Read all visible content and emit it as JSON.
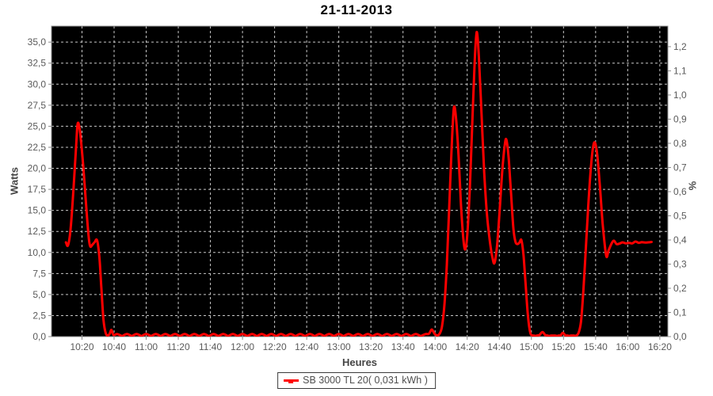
{
  "chart_data": {
    "type": "line",
    "title": "21-11-2013",
    "xlabel": "Heures",
    "ylabel_left": "Watts",
    "ylabel_right": "%",
    "plot_bg": "#000000",
    "grid_color": "#c8c8c8",
    "axis_color": "#8c8c8c",
    "grid_style": "dashed",
    "legend_position": "bottom",
    "x_unit": "minutes after 10:00",
    "xlim": [
      1,
      385
    ],
    "ylim_left": [
      0,
      36.9
    ],
    "ylim_right": [
      0,
      1.285
    ],
    "x_ticks": [
      [
        20,
        "10:20"
      ],
      [
        40,
        "10:40"
      ],
      [
        60,
        "11:00"
      ],
      [
        80,
        "11:20"
      ],
      [
        100,
        "11:40"
      ],
      [
        120,
        "12:00"
      ],
      [
        140,
        "12:20"
      ],
      [
        160,
        "12:40"
      ],
      [
        180,
        "13:00"
      ],
      [
        200,
        "13:20"
      ],
      [
        220,
        "13:40"
      ],
      [
        240,
        "14:00"
      ],
      [
        260,
        "14:20"
      ],
      [
        280,
        "14:40"
      ],
      [
        300,
        "15:00"
      ],
      [
        320,
        "15:20"
      ],
      [
        340,
        "15:40"
      ],
      [
        360,
        "16:00"
      ],
      [
        380,
        "16:20"
      ]
    ],
    "y_ticks_left": [
      [
        0,
        "0,0"
      ],
      [
        2.5,
        "2,5"
      ],
      [
        5,
        "5,0"
      ],
      [
        7.5,
        "7,5"
      ],
      [
        10,
        "10,0"
      ],
      [
        12.5,
        "12,5"
      ],
      [
        15,
        "15,0"
      ],
      [
        17.5,
        "17,5"
      ],
      [
        20,
        "20,0"
      ],
      [
        22.5,
        "22,5"
      ],
      [
        25,
        "25,0"
      ],
      [
        27.5,
        "27,5"
      ],
      [
        30,
        "30,0"
      ],
      [
        32.5,
        "32,5"
      ],
      [
        35,
        "35,0"
      ]
    ],
    "y_ticks_right": [
      [
        0,
        "0,0"
      ],
      [
        0.1,
        "0,1"
      ],
      [
        0.2,
        "0,2"
      ],
      [
        0.3,
        "0,3"
      ],
      [
        0.4,
        "0,4"
      ],
      [
        0.5,
        "0,5"
      ],
      [
        0.6,
        "0,6"
      ],
      [
        0.7,
        "0,7"
      ],
      [
        0.8,
        "0,8"
      ],
      [
        0.9,
        "0,9"
      ],
      [
        1.0,
        "1,0"
      ],
      [
        1.1,
        "1,1"
      ],
      [
        1.2,
        "1,2"
      ]
    ],
    "series": [
      {
        "name": "SB 3000 TL 20( 0,031 kWh )",
        "color": "#ff0000",
        "width": 3,
        "points": [
          [
            10,
            11.2
          ],
          [
            11.3,
            10.85
          ],
          [
            13,
            13
          ],
          [
            15,
            18.5
          ],
          [
            16.3,
            22.5
          ],
          [
            17.3,
            25.3
          ],
          [
            18.6,
            24.6
          ],
          [
            20,
            22
          ],
          [
            21.5,
            18.5
          ],
          [
            23,
            14.5
          ],
          [
            24.3,
            11.6
          ],
          [
            25.2,
            10.7
          ],
          [
            26.4,
            10.9
          ],
          [
            27.8,
            11.2
          ],
          [
            29.4,
            11.45
          ],
          [
            30.8,
            9.5
          ],
          [
            32,
            6
          ],
          [
            33.4,
            2
          ],
          [
            34.7,
            0.45
          ],
          [
            36,
            0.12
          ],
          [
            37.2,
            0.3
          ],
          [
            38.3,
            0.8
          ],
          [
            39.6,
            0.2
          ],
          [
            42,
            0.3
          ],
          [
            45,
            0.05
          ],
          [
            48,
            0.3
          ],
          [
            51,
            0.05
          ],
          [
            54,
            0.3
          ],
          [
            57,
            0.05
          ],
          [
            60,
            0.3
          ],
          [
            63,
            0.05
          ],
          [
            66,
            0.3
          ],
          [
            69,
            0.05
          ],
          [
            72,
            0.3
          ],
          [
            75,
            0.05
          ],
          [
            78,
            0.3
          ],
          [
            81,
            0.05
          ],
          [
            84,
            0.3
          ],
          [
            87,
            0.05
          ],
          [
            90,
            0.3
          ],
          [
            93,
            0.05
          ],
          [
            96,
            0.3
          ],
          [
            99,
            0.05
          ],
          [
            102,
            0.3
          ],
          [
            105,
            0.05
          ],
          [
            108,
            0.3
          ],
          [
            111,
            0.05
          ],
          [
            114,
            0.3
          ],
          [
            117,
            0.05
          ],
          [
            120,
            0.3
          ],
          [
            123,
            0.05
          ],
          [
            126,
            0.3
          ],
          [
            129,
            0.05
          ],
          [
            132,
            0.3
          ],
          [
            135,
            0.05
          ],
          [
            138,
            0.3
          ],
          [
            141,
            0.05
          ],
          [
            144,
            0.3
          ],
          [
            147,
            0.05
          ],
          [
            150,
            0.3
          ],
          [
            153,
            0.05
          ],
          [
            156,
            0.3
          ],
          [
            159,
            0.05
          ],
          [
            162,
            0.3
          ],
          [
            165,
            0.05
          ],
          [
            168,
            0.3
          ],
          [
            171,
            0.05
          ],
          [
            174,
            0.3
          ],
          [
            177,
            0.05
          ],
          [
            180,
            0.3
          ],
          [
            183,
            0.05
          ],
          [
            186,
            0.3
          ],
          [
            189,
            0.05
          ],
          [
            192,
            0.3
          ],
          [
            195,
            0.05
          ],
          [
            198,
            0.3
          ],
          [
            201,
            0.05
          ],
          [
            204,
            0.3
          ],
          [
            207,
            0.05
          ],
          [
            210,
            0.3
          ],
          [
            213,
            0.05
          ],
          [
            216,
            0.3
          ],
          [
            219,
            0.05
          ],
          [
            222,
            0.3
          ],
          [
            225,
            0.05
          ],
          [
            228,
            0.3
          ],
          [
            231,
            0.05
          ],
          [
            234,
            0.3
          ],
          [
            236.2,
            0.35
          ],
          [
            237.9,
            0.85
          ],
          [
            239.6,
            0.35
          ],
          [
            241.3,
            0.12
          ],
          [
            242.8,
            0.35
          ],
          [
            244.3,
            1.2
          ],
          [
            245.8,
            3.8
          ],
          [
            247.3,
            8.5
          ],
          [
            248.8,
            15.5
          ],
          [
            250.3,
            22.5
          ],
          [
            251.7,
            27.2
          ],
          [
            253.1,
            25.8
          ],
          [
            254.6,
            21.5
          ],
          [
            256.1,
            15.8
          ],
          [
            257.5,
            11.8
          ],
          [
            258.8,
            10.35
          ],
          [
            260.1,
            12.2
          ],
          [
            261.6,
            17.5
          ],
          [
            263.2,
            25.5
          ],
          [
            264.6,
            32.5
          ],
          [
            265.9,
            36.2
          ],
          [
            267.3,
            33.2
          ],
          [
            268.9,
            26.5
          ],
          [
            270.6,
            19.5
          ],
          [
            272.3,
            14.5
          ],
          [
            274.2,
            11.2
          ],
          [
            275.7,
            9.4
          ],
          [
            277,
            8.75
          ],
          [
            278.6,
            10.8
          ],
          [
            280.2,
            15
          ],
          [
            281.9,
            19.8
          ],
          [
            283.4,
            22.8
          ],
          [
            284.4,
            23.4
          ],
          [
            285.8,
            21.3
          ],
          [
            287.3,
            17
          ],
          [
            288.8,
            12.8
          ],
          [
            290.1,
            11.25
          ],
          [
            291.4,
            11
          ],
          [
            292.6,
            11.2
          ],
          [
            293.8,
            11.45
          ],
          [
            295.1,
            9.6
          ],
          [
            296.4,
            6.2
          ],
          [
            297.7,
            2.8
          ],
          [
            299.1,
            0.6
          ],
          [
            300.6,
            0.12
          ],
          [
            302.6,
            0.06
          ],
          [
            304.8,
            0.15
          ],
          [
            306.9,
            0.55
          ],
          [
            308.8,
            0.15
          ],
          [
            311,
            0.06
          ],
          [
            313.5,
            0.12
          ],
          [
            316,
            0.06
          ],
          [
            318,
            0.1
          ],
          [
            319.6,
            0.45
          ],
          [
            321.4,
            0.1
          ],
          [
            323.5,
            0.05
          ],
          [
            325.5,
            0.12
          ],
          [
            327.4,
            0.06
          ],
          [
            329.3,
            0.4
          ],
          [
            330.9,
            1.8
          ],
          [
            332.4,
            5.5
          ],
          [
            333.9,
            10.5
          ],
          [
            335.4,
            15.5
          ],
          [
            337,
            20
          ],
          [
            338.4,
            22.5
          ],
          [
            339.6,
            23.05
          ],
          [
            341,
            21.6
          ],
          [
            342.7,
            17.8
          ],
          [
            344.5,
            13.2
          ],
          [
            346.6,
            9.6
          ],
          [
            348.1,
            10.25
          ],
          [
            349.9,
            11.05
          ],
          [
            351.4,
            11.4
          ],
          [
            353,
            11
          ],
          [
            354.8,
            11.05
          ],
          [
            356.8,
            11.2
          ],
          [
            358.8,
            11.08
          ],
          [
            360.8,
            11.15
          ],
          [
            362.8,
            11.08
          ],
          [
            364.8,
            11.3
          ],
          [
            366.8,
            11.15
          ],
          [
            368.8,
            11.22
          ],
          [
            370.8,
            11.18
          ],
          [
            372.8,
            11.2
          ],
          [
            374.9,
            11.25
          ]
        ]
      }
    ]
  }
}
